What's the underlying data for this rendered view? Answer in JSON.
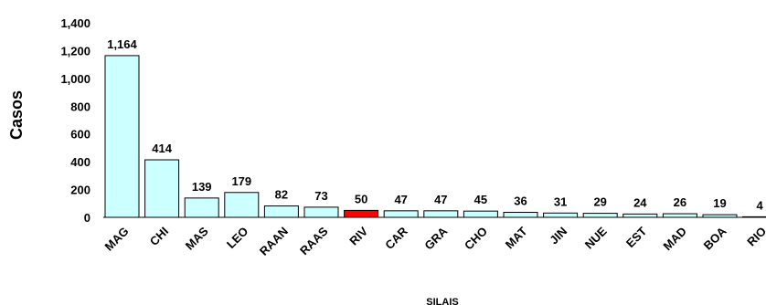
{
  "chart_data": {
    "type": "bar",
    "title": "",
    "ylabel": "Casos",
    "xlabel": "SILAIS",
    "ylim": [
      0,
      1400
    ],
    "yticks": [
      "0",
      "200",
      "400",
      "600",
      "800",
      "1,000",
      "1,200",
      "1,400"
    ],
    "grid": false,
    "legend": "none",
    "categories": [
      "MAG",
      "CHI",
      "MAS",
      "LEO",
      "RAAN",
      "RAAS",
      "RIV",
      "CAR",
      "GRA",
      "CHO",
      "MAT",
      "JIN",
      "NUE",
      "EST",
      "MAD",
      "BOA",
      "RIO"
    ],
    "values": [
      1164,
      414,
      139,
      179,
      82,
      73,
      50,
      47,
      47,
      45,
      36,
      31,
      29,
      24,
      26,
      19,
      4
    ],
    "data_labels": [
      "1,164",
      "414",
      "139",
      "179",
      "82",
      "73",
      "50",
      "47",
      "47",
      "45",
      "36",
      "31",
      "29",
      "24",
      "26",
      "19",
      "4"
    ],
    "bar_color": "#ccffff",
    "highlight_color": "#ff0000",
    "highlight_category": "RIV",
    "edge_color": "#000000"
  }
}
